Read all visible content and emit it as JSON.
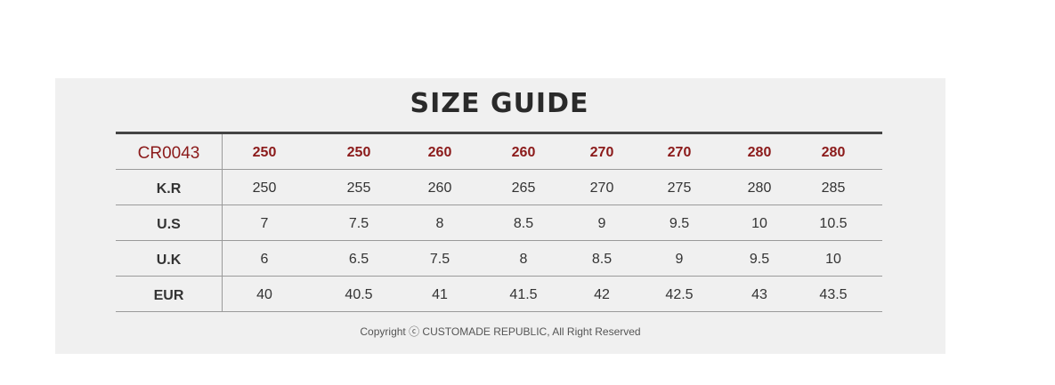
{
  "title": "SIZE GUIDE",
  "table": {
    "model": "CR0043",
    "header": [
      "250",
      "250",
      "260",
      "260",
      "270",
      "270",
      "280",
      "280"
    ],
    "rows": [
      {
        "label": "K.R",
        "values": [
          "250",
          "255",
          "260",
          "265",
          "270",
          "275",
          "280",
          "285"
        ]
      },
      {
        "label": "U.S",
        "values": [
          "7",
          "7.5",
          "8",
          "8.5",
          "9",
          "9.5",
          "10",
          "10.5"
        ]
      },
      {
        "label": "U.K",
        "values": [
          "6",
          "6.5",
          "7.5",
          "8",
          "8.5",
          "9",
          "9.5",
          "10"
        ]
      },
      {
        "label": "EUR",
        "values": [
          "40",
          "40.5",
          "41",
          "41.5",
          "42",
          "42.5",
          "43",
          "43.5"
        ]
      }
    ]
  },
  "copyright": "Copyright ⓒ CUSTOMADE REPUBLIC, All Right Reserved",
  "colors": {
    "accent": "#8b1a1a",
    "background": "#f0f0f0"
  }
}
